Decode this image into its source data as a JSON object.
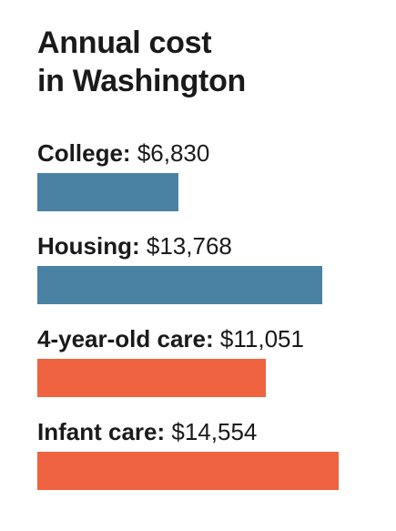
{
  "chart_data": {
    "type": "bar",
    "title_lines": [
      "Annual cost",
      "in Washington"
    ],
    "categories": [
      "College:",
      "Housing:",
      "4-year-old care:",
      "Infant care:"
    ],
    "values": [
      6830,
      13768,
      11051,
      14554
    ],
    "value_labels": [
      "$6,830",
      "$13,768",
      "$11,051",
      "$14,554"
    ],
    "colors": [
      "#4a82a3",
      "#4a82a3",
      "#ef6340",
      "#ef6340"
    ],
    "orientation": "horizontal",
    "xlim": [
      0,
      14554
    ],
    "grid": false,
    "legend": "none"
  }
}
